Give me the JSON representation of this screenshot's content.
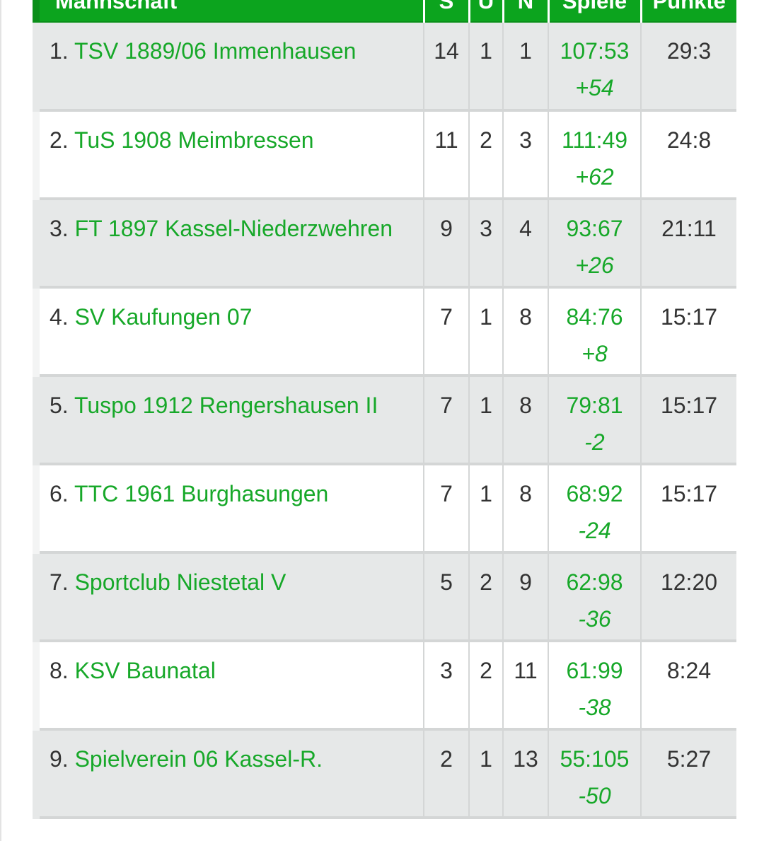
{
  "header": {
    "team": "Mannschaft",
    "s": "S",
    "u": "U",
    "n": "N",
    "spiele": "Spiele",
    "punkte": "Punkte"
  },
  "rows": [
    {
      "rank": "1.",
      "team": "TSV 1889/06 Immenhausen",
      "s": "14",
      "u": "1",
      "n": "1",
      "spiele": "107:53",
      "diff": "+54",
      "punkte": "29:3"
    },
    {
      "rank": "2.",
      "team": "TuS 1908 Meimbressen",
      "s": "11",
      "u": "2",
      "n": "3",
      "spiele": "111:49",
      "diff": "+62",
      "punkte": "24:8"
    },
    {
      "rank": "3.",
      "team": "FT 1897 Kassel-Niederzwehren",
      "s": "9",
      "u": "3",
      "n": "4",
      "spiele": "93:67",
      "diff": "+26",
      "punkte": "21:11"
    },
    {
      "rank": "4.",
      "team": "SV Kaufungen 07",
      "s": "7",
      "u": "1",
      "n": "8",
      "spiele": "84:76",
      "diff": "+8",
      "punkte": "15:17"
    },
    {
      "rank": "5.",
      "team": "Tuspo 1912 Rengershausen II",
      "s": "7",
      "u": "1",
      "n": "8",
      "spiele": "79:81",
      "diff": "-2",
      "punkte": "15:17"
    },
    {
      "rank": "6.",
      "team": "TTC 1961 Burghasungen",
      "s": "7",
      "u": "1",
      "n": "8",
      "spiele": "68:92",
      "diff": "-24",
      "punkte": "15:17"
    },
    {
      "rank": "7.",
      "team": "Sportclub Niestetal V",
      "s": "5",
      "u": "2",
      "n": "9",
      "spiele": "62:98",
      "diff": "-36",
      "punkte": "12:20"
    },
    {
      "rank": "8.",
      "team": "KSV Baunatal",
      "s": "3",
      "u": "2",
      "n": "11",
      "spiele": "61:99",
      "diff": "-38",
      "punkte": "8:24"
    },
    {
      "rank": "9.",
      "team": "Spielverein 06 Kassel-R.",
      "s": "2",
      "u": "1",
      "n": "13",
      "spiele": "55:105",
      "diff": "-50",
      "punkte": "5:27"
    }
  ]
}
